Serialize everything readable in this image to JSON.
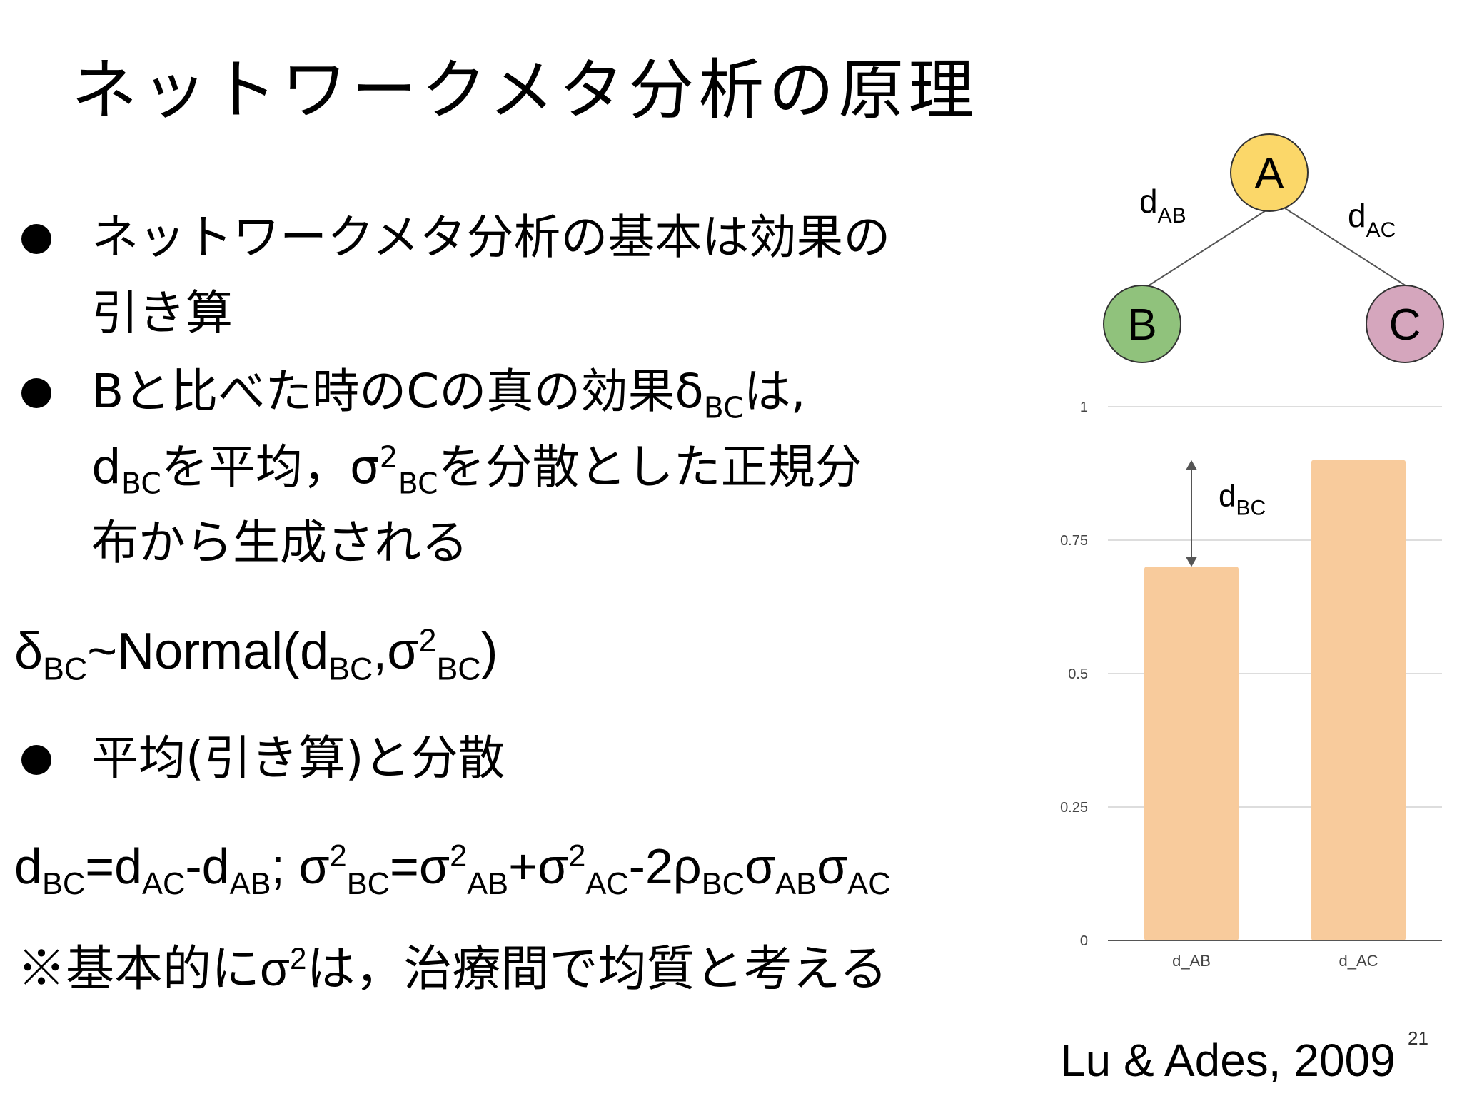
{
  "slide": {
    "title": "ネットワークメタ分析の原理",
    "page_number": "21",
    "citation": "Lu & Ades, 2009"
  },
  "bullets": {
    "b1_line1": "ネットワークメタ分析の基本は効果の",
    "b1_line2": "引き算",
    "b2_line1_pre": "Bと比べた時のCの真の効果δ",
    "b2_line1_sub": "BC",
    "b2_line1_post": "は,",
    "b2_line2_d": "d",
    "b2_line2_sub1": "BC",
    "b2_line2_mid": "を平均，σ",
    "b2_line2_sup": "2",
    "b2_line2_sub2": "BC",
    "b2_line2_post": "を分散とした正規分",
    "b2_line3": "布から生成される",
    "b3_line1": "平均(引き算)と分散"
  },
  "formula1": {
    "delta": "δ",
    "delta_sub": "BC",
    "normal": "~Normal(d",
    "d_sub": "BC",
    "comma_sigma": ",σ",
    "sigma_sup": "2",
    "sigma_sub": "BC",
    "close": ")"
  },
  "formula2": {
    "p1": "d",
    "s1": "BC",
    "p2": "=d",
    "s2": "AC",
    "p3": "-d",
    "s3": "AB",
    "p4": "; σ",
    "u4": "2",
    "s4": "BC",
    "p5": "=σ",
    "u5": "2",
    "s5": "AB",
    "p6": "+σ",
    "u6": "2",
    "s6": "AC",
    "p7": "-2ρ",
    "s7": "BC",
    "p8": "σ",
    "s8": "AB",
    "p9": "σ",
    "s9": "AC"
  },
  "note": {
    "pre": "※基本的にσ",
    "sup": "2",
    "post": "は，治療間で均質と考える"
  },
  "network": {
    "nodes": [
      {
        "label": "A",
        "color": "#fbd769"
      },
      {
        "label": "B",
        "color": "#90c27c"
      },
      {
        "label": "C",
        "color": "#d5a6bd"
      }
    ],
    "edges": [
      {
        "label": "d",
        "sub": "AB"
      },
      {
        "label": "d",
        "sub": "AC"
      }
    ]
  },
  "chart_data": {
    "type": "bar",
    "categories": [
      "d_AB",
      "d_AC"
    ],
    "values": [
      0.7,
      0.9
    ],
    "ylim": [
      0,
      1
    ],
    "yticks": [
      "0",
      "0.25",
      "0.5",
      "0.75",
      "1"
    ],
    "grid": true,
    "bar_color": "#f8cb9c",
    "annotation": {
      "label": "d",
      "sub": "BC"
    }
  }
}
